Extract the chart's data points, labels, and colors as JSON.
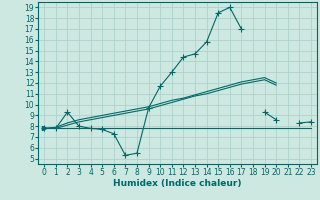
{
  "xlabel": "Humidex (Indice chaleur)",
  "background_color": "#cce8e0",
  "grid_color": "#aacec8",
  "line_color": "#006868",
  "xlim": [
    -0.5,
    23.5
  ],
  "ylim": [
    4.5,
    19.5
  ],
  "xticks": [
    0,
    1,
    2,
    3,
    4,
    5,
    6,
    7,
    8,
    9,
    10,
    11,
    12,
    13,
    14,
    15,
    16,
    17,
    18,
    19,
    20,
    21,
    22,
    23
  ],
  "yticks": [
    5,
    6,
    7,
    8,
    9,
    10,
    11,
    12,
    13,
    14,
    15,
    16,
    17,
    18,
    19
  ],
  "line1_x": [
    0,
    1,
    2,
    3,
    4,
    5,
    6,
    7,
    8,
    9,
    10,
    11,
    12,
    13,
    14,
    15,
    16,
    17,
    19,
    20,
    21,
    22,
    23
  ],
  "line1_y": [
    7.8,
    7.8,
    9.3,
    8.0,
    7.8,
    7.7,
    7.3,
    5.3,
    5.5,
    9.7,
    11.7,
    13.0,
    14.4,
    14.7,
    15.8,
    18.5,
    19.0,
    17.0,
    9.3,
    8.6,
    8.3,
    8.3,
    8.4
  ],
  "line2_x": [
    0,
    1,
    2,
    3,
    4,
    5,
    6,
    7,
    8,
    9,
    10,
    11,
    12,
    13,
    14,
    15,
    16,
    17,
    18,
    19,
    20,
    21,
    22,
    23
  ],
  "line2_y": [
    7.8,
    7.8,
    7.8,
    7.8,
    7.8,
    7.8,
    7.8,
    7.8,
    7.8,
    7.8,
    7.8,
    7.8,
    7.8,
    7.8,
    7.8,
    7.8,
    7.8,
    7.8,
    7.8,
    7.8,
    7.8,
    7.8,
    7.8,
    7.8
  ],
  "line3_x": [
    0,
    1,
    2,
    3,
    4,
    5,
    6,
    7,
    8,
    9,
    10,
    11,
    12,
    13,
    14,
    15,
    16,
    17,
    18,
    19,
    20
  ],
  "line3_y": [
    7.8,
    7.9,
    8.3,
    8.6,
    8.8,
    9.0,
    9.2,
    9.4,
    9.6,
    9.8,
    10.1,
    10.4,
    10.6,
    10.9,
    11.2,
    11.5,
    11.8,
    12.1,
    12.3,
    12.5,
    12.0
  ],
  "line4_x": [
    0,
    1,
    2,
    3,
    4,
    5,
    6,
    7,
    8,
    9,
    10,
    11,
    12,
    13,
    14,
    15,
    16,
    17,
    18,
    19,
    20
  ],
  "line4_y": [
    7.8,
    7.8,
    8.1,
    8.4,
    8.6,
    8.8,
    9.0,
    9.2,
    9.4,
    9.6,
    9.9,
    10.2,
    10.5,
    10.8,
    11.0,
    11.3,
    11.6,
    11.9,
    12.1,
    12.3,
    11.8
  ]
}
